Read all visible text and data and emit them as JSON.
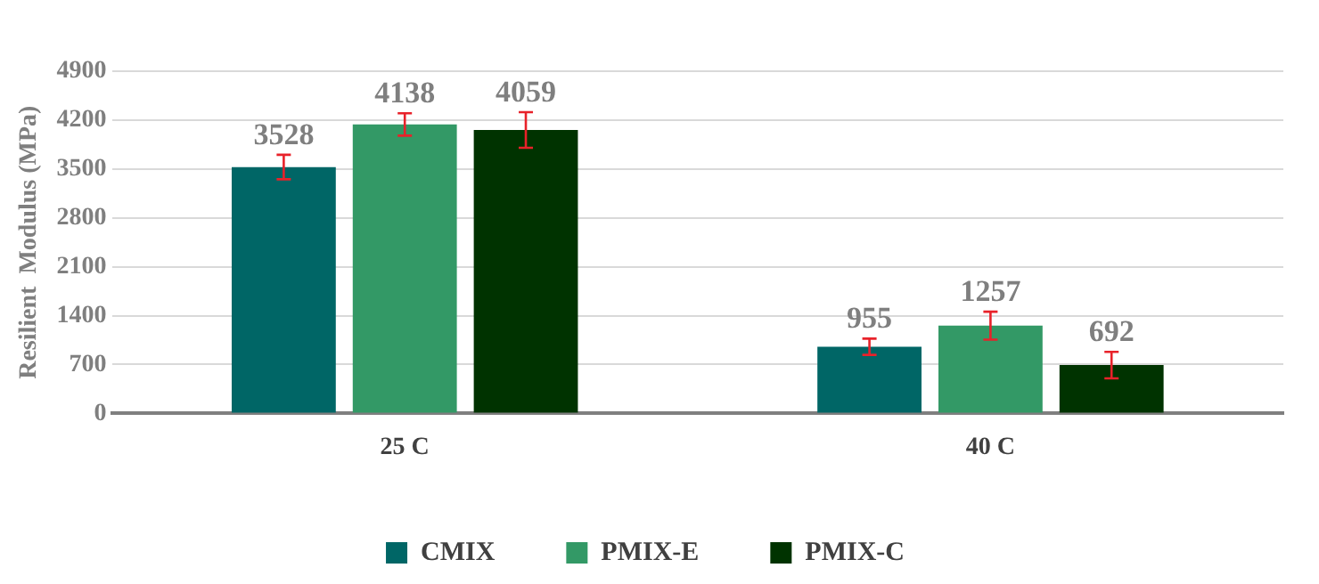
{
  "chart_data": {
    "type": "bar",
    "ylabel": "Resilient  Modulus (MPa)",
    "categories": [
      "25 C",
      "40 C"
    ],
    "series": [
      {
        "name": "CMIX",
        "color": "#006666",
        "values": [
          3528,
          955
        ],
        "errors": [
          175,
          116
        ]
      },
      {
        "name": "PMIX-E",
        "color": "#339966",
        "values": [
          4138,
          1257
        ],
        "errors": [
          160,
          200
        ]
      },
      {
        "name": "PMIX-C",
        "color": "#003300",
        "values": [
          4059,
          692
        ],
        "errors": [
          255,
          190
        ]
      }
    ],
    "ylim": [
      0,
      4900
    ],
    "yticks": [
      0,
      700,
      1400,
      2100,
      2800,
      3500,
      4200,
      4900
    ],
    "grid": "y",
    "legend": "bottom",
    "data_labels": true
  }
}
